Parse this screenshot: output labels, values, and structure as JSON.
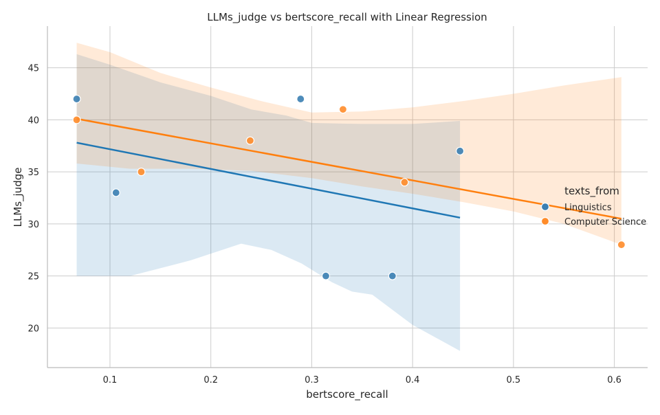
{
  "chart_data": {
    "type": "scatter",
    "title": "LLMs_judge vs bertscore_recall with Linear Regression",
    "xlabel": "bertscore_recall",
    "ylabel": "LLMs_judge",
    "xlim": [
      0.038,
      0.633
    ],
    "ylim": [
      16.2,
      49.0
    ],
    "xticks": [
      0.1,
      0.2,
      0.3,
      0.4,
      0.5,
      0.6
    ],
    "xtick_labels": [
      "0.1",
      "0.2",
      "0.3",
      "0.4",
      "0.5",
      "0.6"
    ],
    "yticks": [
      20,
      25,
      30,
      35,
      40,
      45
    ],
    "ytick_labels": [
      "20",
      "25",
      "30",
      "35",
      "40",
      "45"
    ],
    "grid": true,
    "legend": {
      "title": "texts_from",
      "position": "right"
    },
    "series": [
      {
        "name": "Linguistics",
        "color": "#1f77b4",
        "marker_color": "#3b7fb2",
        "points": [
          {
            "x": 0.067,
            "y": 42
          },
          {
            "x": 0.106,
            "y": 33
          },
          {
            "x": 0.289,
            "y": 42
          },
          {
            "x": 0.314,
            "y": 25
          },
          {
            "x": 0.38,
            "y": 25
          },
          {
            "x": 0.447,
            "y": 37
          }
        ],
        "regression": {
          "x_start": 0.067,
          "y_start": 37.8,
          "x_end": 0.447,
          "y_end": 30.6
        },
        "ci_upper": [
          {
            "x": 0.067,
            "y": 46.3
          },
          {
            "x": 0.1,
            "y": 45.3
          },
          {
            "x": 0.15,
            "y": 43.6
          },
          {
            "x": 0.2,
            "y": 42.3
          },
          {
            "x": 0.24,
            "y": 41.0
          },
          {
            "x": 0.275,
            "y": 40.4
          },
          {
            "x": 0.3,
            "y": 39.7
          },
          {
            "x": 0.35,
            "y": 39.6
          },
          {
            "x": 0.4,
            "y": 39.6
          },
          {
            "x": 0.447,
            "y": 39.9
          }
        ],
        "ci_lower": [
          {
            "x": 0.067,
            "y": 25.0
          },
          {
            "x": 0.12,
            "y": 25.0
          },
          {
            "x": 0.18,
            "y": 26.5
          },
          {
            "x": 0.23,
            "y": 28.1
          },
          {
            "x": 0.26,
            "y": 27.5
          },
          {
            "x": 0.29,
            "y": 26.2
          },
          {
            "x": 0.32,
            "y": 24.4
          },
          {
            "x": 0.34,
            "y": 23.5
          },
          {
            "x": 0.36,
            "y": 23.2
          },
          {
            "x": 0.4,
            "y": 20.3
          },
          {
            "x": 0.447,
            "y": 17.8
          }
        ]
      },
      {
        "name": "Computer Science",
        "color": "#ff7f0e",
        "marker_color": "#ff8c2a",
        "points": [
          {
            "x": 0.067,
            "y": 40
          },
          {
            "x": 0.131,
            "y": 35
          },
          {
            "x": 0.239,
            "y": 38
          },
          {
            "x": 0.331,
            "y": 41
          },
          {
            "x": 0.392,
            "y": 34
          },
          {
            "x": 0.607,
            "y": 28
          }
        ],
        "regression": {
          "x_start": 0.067,
          "y_start": 40.1,
          "x_end": 0.607,
          "y_end": 30.5
        },
        "ci_upper": [
          {
            "x": 0.067,
            "y": 47.4
          },
          {
            "x": 0.1,
            "y": 46.5
          },
          {
            "x": 0.15,
            "y": 44.5
          },
          {
            "x": 0.2,
            "y": 43.1
          },
          {
            "x": 0.25,
            "y": 41.8
          },
          {
            "x": 0.3,
            "y": 40.7
          },
          {
            "x": 0.35,
            "y": 40.8
          },
          {
            "x": 0.4,
            "y": 41.2
          },
          {
            "x": 0.45,
            "y": 41.8
          },
          {
            "x": 0.5,
            "y": 42.5
          },
          {
            "x": 0.55,
            "y": 43.3
          },
          {
            "x": 0.607,
            "y": 44.1
          }
        ],
        "ci_lower": [
          {
            "x": 0.067,
            "y": 35.8
          },
          {
            "x": 0.12,
            "y": 35.3
          },
          {
            "x": 0.18,
            "y": 35.3
          },
          {
            "x": 0.24,
            "y": 35.1
          },
          {
            "x": 0.3,
            "y": 34.4
          },
          {
            "x": 0.35,
            "y": 33.6
          },
          {
            "x": 0.4,
            "y": 32.9
          },
          {
            "x": 0.45,
            "y": 32.1
          },
          {
            "x": 0.5,
            "y": 31.2
          },
          {
            "x": 0.55,
            "y": 30.0
          },
          {
            "x": 0.607,
            "y": 28.0
          }
        ]
      }
    ]
  }
}
